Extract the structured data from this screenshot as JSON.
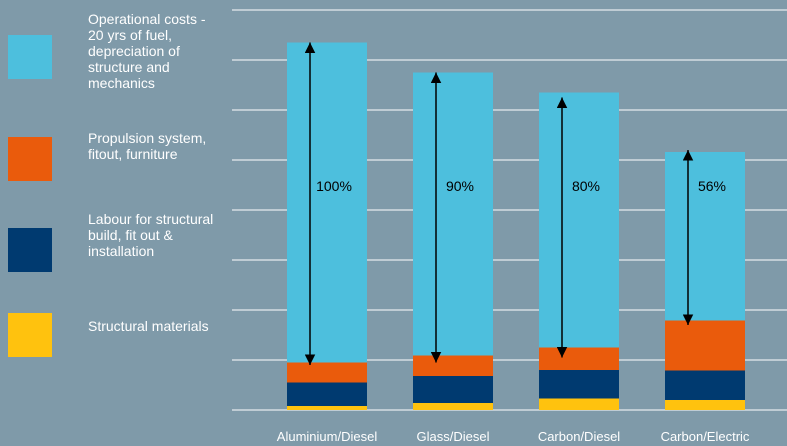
{
  "chart_data": {
    "type": "bar",
    "stacked": true,
    "categories": [
      "Aluminium/Diesel",
      "Glass/Diesel",
      "Carbon/Diesel",
      "Carbon/Electric"
    ],
    "series": [
      {
        "name": "Structural materials",
        "color": "#ffc20e",
        "values": [
          0.8,
          1.4,
          2.3,
          2.0
        ]
      },
      {
        "name": "Labour for structural build, fit out & installation",
        "color": "#003a70",
        "values": [
          4.7,
          5.4,
          5.7,
          5.9
        ]
      },
      {
        "name": "Propulsion system, fitout, furniture",
        "color": "#ea5b0c",
        "values": [
          4.0,
          4.1,
          4.5,
          10.0
        ]
      },
      {
        "name": "Operational costs - 20 yrs of fuel, depreciation of structure and mechanics",
        "color": "#4dbfdd",
        "values": [
          64.0,
          56.6,
          51.0,
          33.7
        ]
      }
    ],
    "annotations": [
      "100%",
      "90%",
      "80%",
      "56%"
    ],
    "arrow_top": [
      73.5,
      67.5,
      62.5,
      52.0
    ],
    "arrow_bottom": [
      9.0,
      9.5,
      10.5,
      17.0
    ],
    "ylim": [
      0,
      80
    ],
    "grid": true,
    "legend_position": "left",
    "title": "",
    "xlabel": "",
    "ylabel": ""
  }
}
